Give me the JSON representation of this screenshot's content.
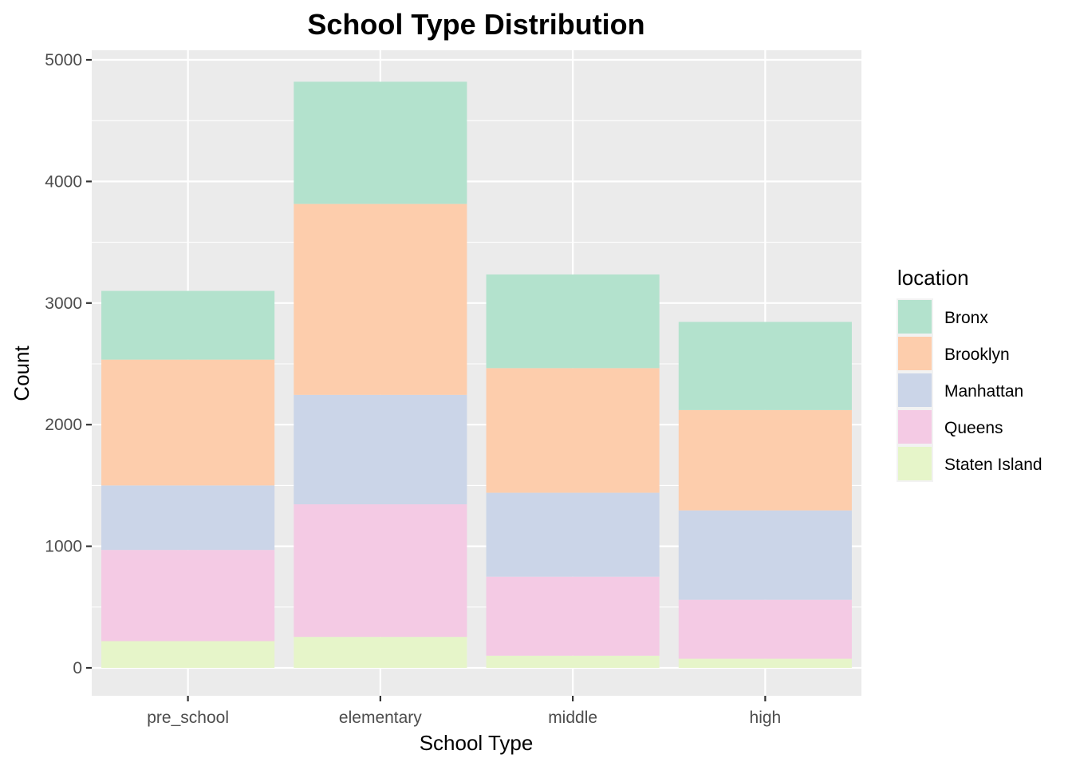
{
  "chart_data": {
    "type": "bar",
    "stacked": true,
    "title": "School Type Distribution",
    "xlabel": "School Type",
    "ylabel": "Count",
    "categories": [
      "pre_school",
      "elementary",
      "middle",
      "high"
    ],
    "ylim": [
      0,
      5000
    ],
    "yticks": [
      0,
      1000,
      2000,
      3000,
      4000,
      5000
    ],
    "grid": true,
    "legend": {
      "title": "location",
      "placement": "right"
    },
    "series": [
      {
        "name": "Staten Island",
        "color": "#e6f5c9",
        "values": [
          220,
          255,
          100,
          75
        ]
      },
      {
        "name": "Queens",
        "color": "#f4cae4",
        "values": [
          750,
          1090,
          650,
          485
        ]
      },
      {
        "name": "Manhattan",
        "color": "#cbd5e8",
        "values": [
          530,
          900,
          690,
          735
        ]
      },
      {
        "name": "Brooklyn",
        "color": "#fdcdac",
        "values": [
          1035,
          1570,
          1025,
          825
        ]
      },
      {
        "name": "Bronx",
        "color": "#b3e2cd",
        "values": [
          565,
          1005,
          770,
          725
        ]
      }
    ],
    "legend_order": [
      "Bronx",
      "Brooklyn",
      "Manhattan",
      "Queens",
      "Staten Island"
    ]
  }
}
